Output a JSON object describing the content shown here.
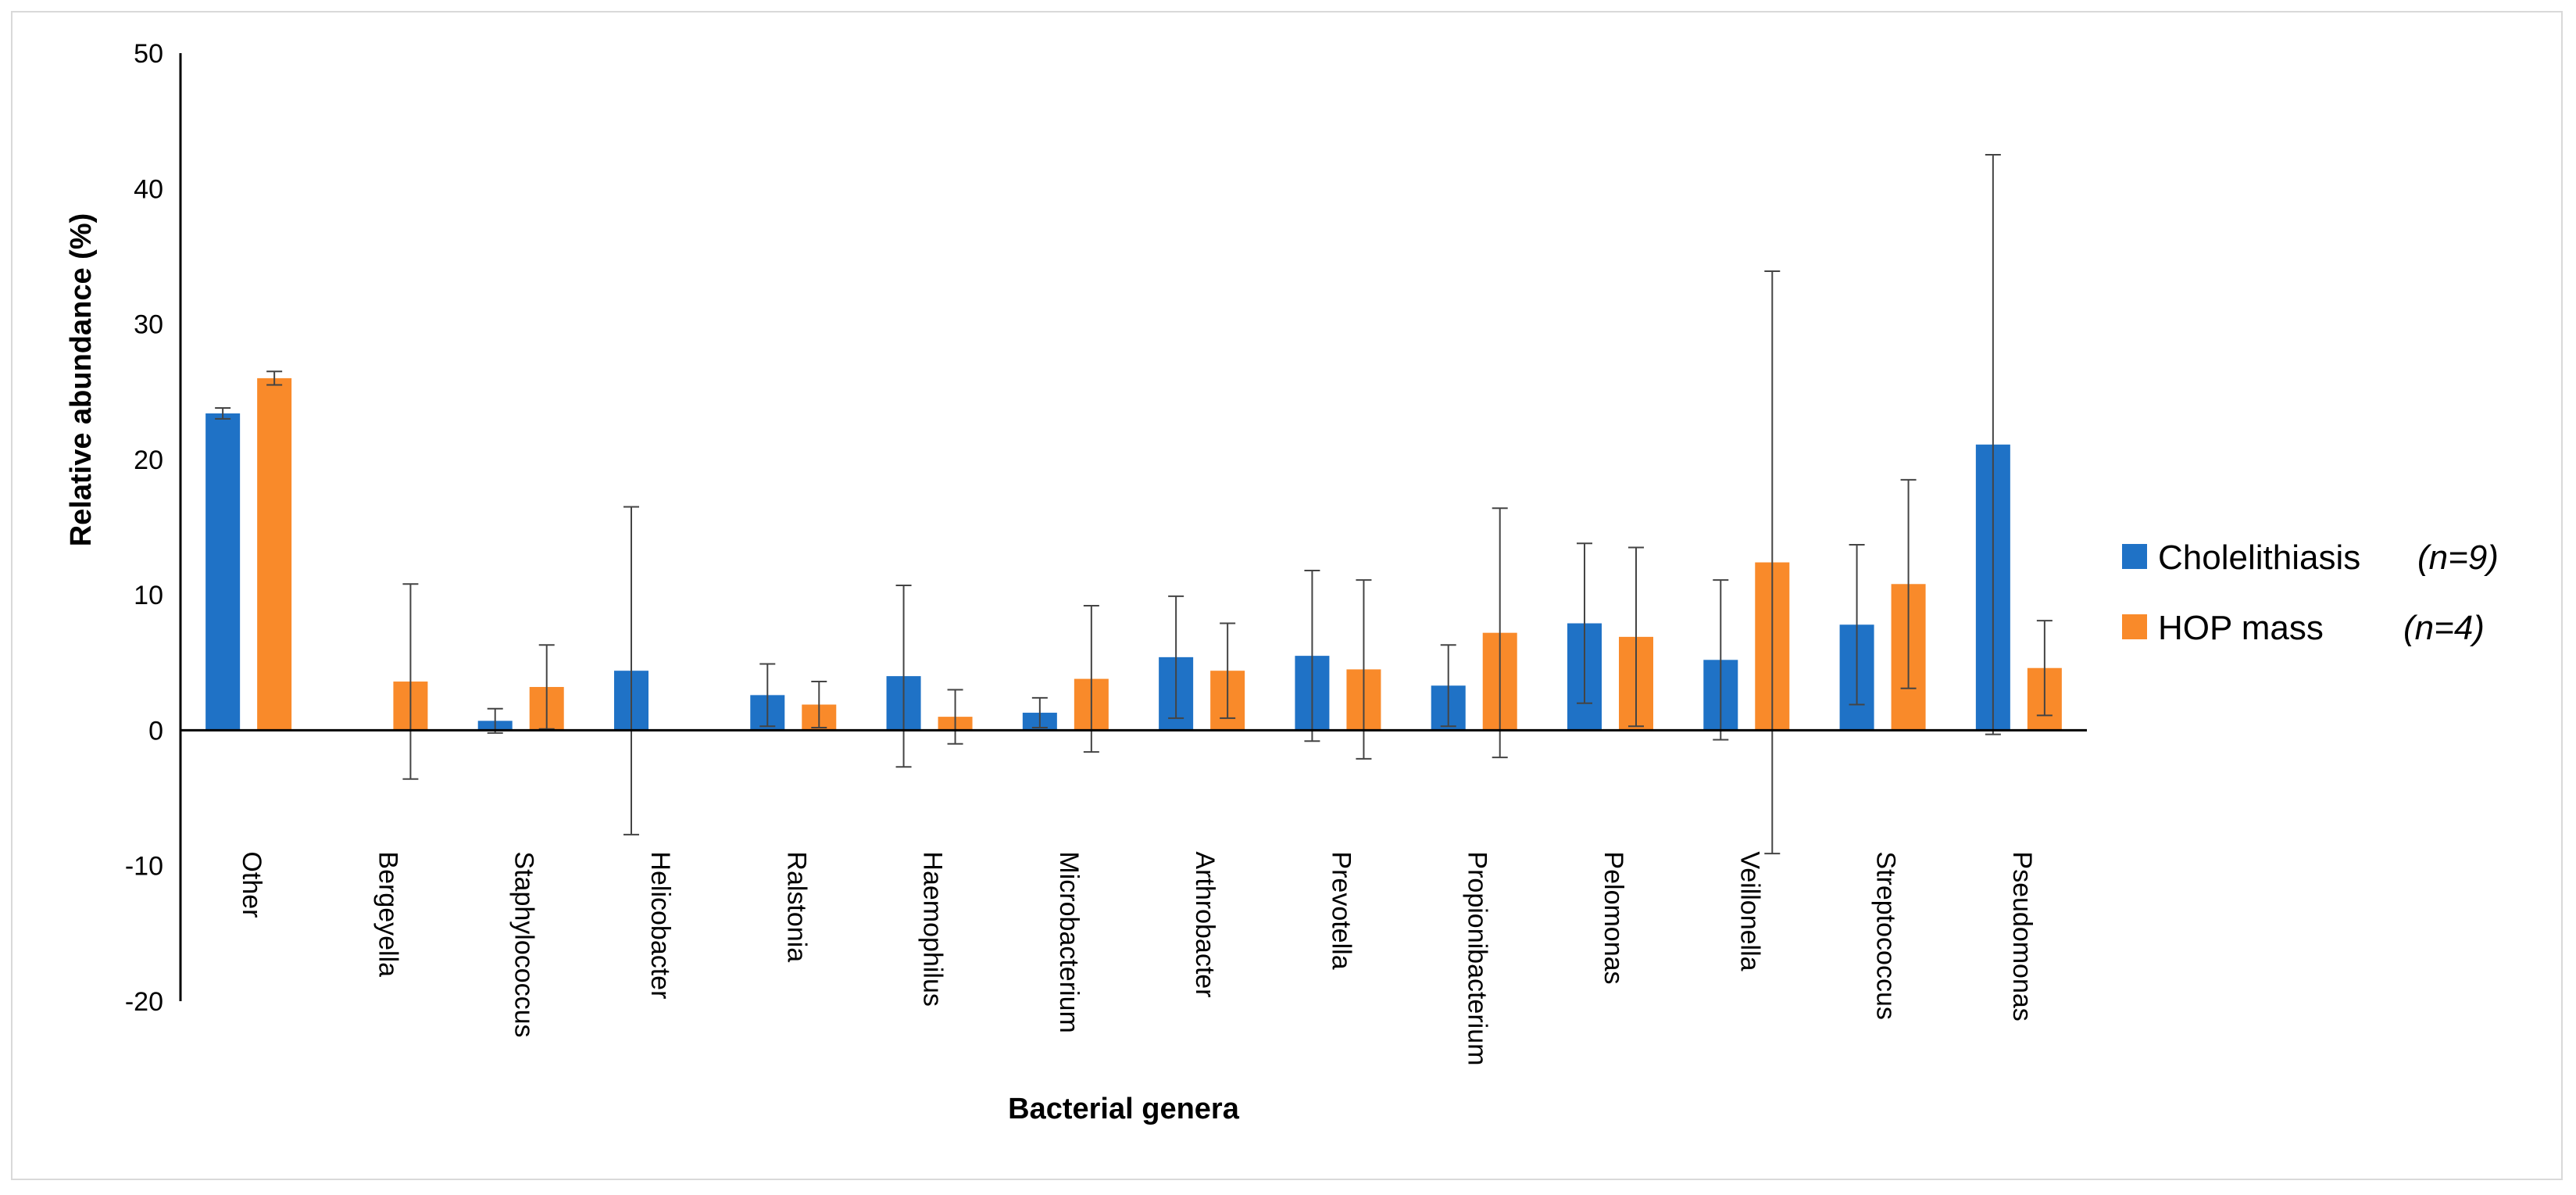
{
  "chart_data": {
    "type": "bar",
    "title": "",
    "xlabel": "Bacterial genera",
    "ylabel": "Relative abundance (%)",
    "ylim": [
      -20,
      50
    ],
    "yticks": [
      "-20",
      "-10",
      "0",
      "10",
      "20",
      "30",
      "40",
      "50"
    ],
    "grid": false,
    "legend_position": "right",
    "categories": [
      "Other",
      "Bergeyella",
      "Staphylococcus",
      "Helicobacter",
      "Ralstonia",
      "Haemophilus",
      "Microbacterium",
      "Arthrobacter",
      "Prevotella",
      "Propionibacterium",
      "Pelomonas",
      "Veillonella",
      "Streptococcus",
      "Pseudomonas"
    ],
    "series": [
      {
        "name": "Cholelithiasis",
        "n_label": "(n=9)",
        "color": "#1f72c6",
        "values": [
          23.4,
          0.0,
          0.7,
          4.4,
          2.6,
          4.0,
          1.3,
          5.4,
          5.5,
          3.3,
          7.9,
          5.2,
          7.8,
          21.1
        ],
        "errors": [
          0.4,
          0.0,
          0.9,
          12.1,
          2.3,
          6.7,
          1.1,
          4.5,
          6.3,
          3.0,
          5.9,
          5.9,
          5.9,
          21.4
        ]
      },
      {
        "name": "HOP mass",
        "n_label": "(n=4)",
        "color": "#f98a2a",
        "values": [
          26.0,
          3.6,
          3.2,
          0.05,
          1.9,
          1.0,
          3.8,
          4.4,
          4.5,
          7.2,
          6.9,
          12.4,
          10.8,
          4.6
        ],
        "errors": [
          0.5,
          7.2,
          3.1,
          0.0,
          1.7,
          2.0,
          5.4,
          3.5,
          6.6,
          9.2,
          6.6,
          21.5,
          7.7,
          3.5
        ]
      }
    ]
  }
}
